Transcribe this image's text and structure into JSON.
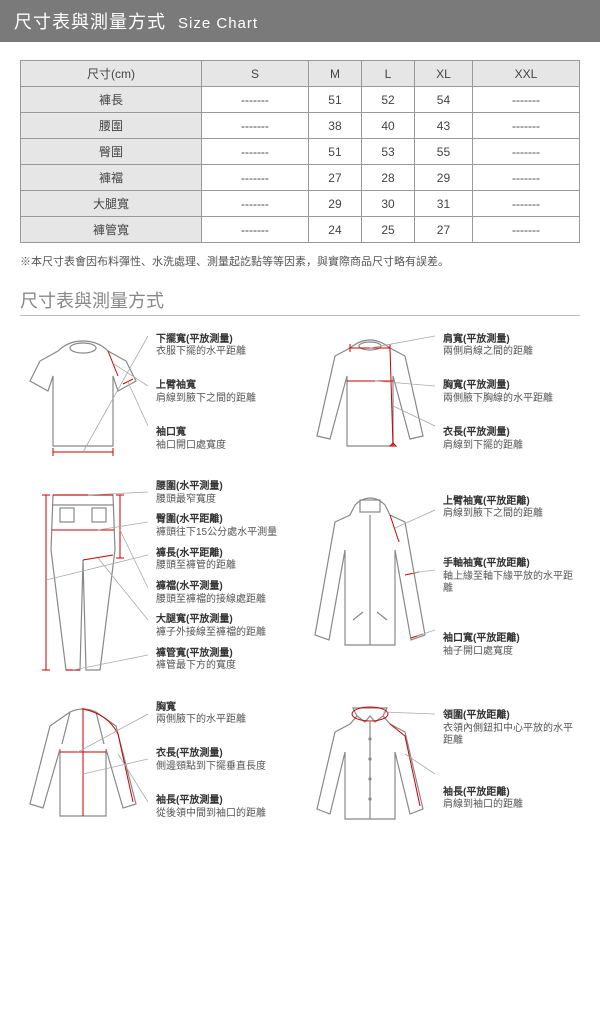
{
  "header": {
    "title_zh": "尺寸表與測量方式",
    "title_en": "Size Chart"
  },
  "table": {
    "columns": [
      "尺寸(cm)",
      "S",
      "M",
      "L",
      "XL",
      "XXL"
    ],
    "rows": [
      [
        "褲長",
        "-------",
        "51",
        "52",
        "54",
        "-------"
      ],
      [
        "腰圍",
        "-------",
        "38",
        "40",
        "43",
        "-------"
      ],
      [
        "臀圍",
        "-------",
        "51",
        "53",
        "55",
        "-------"
      ],
      [
        "褲襠",
        "-------",
        "27",
        "28",
        "29",
        "-------"
      ],
      [
        "大腿寬",
        "-------",
        "29",
        "30",
        "31",
        "-------"
      ],
      [
        "褲管寬",
        "-------",
        "24",
        "25",
        "27",
        "-------"
      ]
    ]
  },
  "note": "※本尺寸表會因布料彈性、水洗處理、測量起訖點等等因素，與實際商品尺寸略有誤差。",
  "subheader": "尺寸表與測量方式",
  "diagrams": {
    "tshirt": [
      {
        "t": "下擺寬(平放測量)",
        "d": "衣服下擺的水平距離"
      },
      {
        "t": "上臂袖寬",
        "d": "肩線到腋下之間的距離"
      },
      {
        "t": "袖口寬",
        "d": "袖口開口處寬度"
      }
    ],
    "longsleeve": [
      {
        "t": "肩寬(平放測量)",
        "d": "兩側肩線之間的距離"
      },
      {
        "t": "胸寬(平放測量)",
        "d": "兩側腋下胸線的水平距離"
      },
      {
        "t": "衣長(平放測量)",
        "d": "肩線到下擺的距離"
      }
    ],
    "pants": [
      {
        "t": "腰圍(水平測量)",
        "d": "腰頭最窄寬度"
      },
      {
        "t": "臀圍(水平距離)",
        "d": "褲頭往下15公分處水平測量"
      },
      {
        "t": "褲長(水平距離)",
        "d": "腰頭至褲管的距離"
      },
      {
        "t": "褲襠(水平測量)",
        "d": "腰頭至褲襠的接線處距離"
      },
      {
        "t": "大腿寬(平放測量)",
        "d": "褲子外接線至褲襠的距離"
      },
      {
        "t": "褲管寬(平放測量)",
        "d": "褲管最下方的寬度"
      }
    ],
    "jacket": [
      {
        "t": "上臂袖寬(平放距離)",
        "d": "肩線到腋下之間的距離"
      },
      {
        "t": "手軸袖寬(平放距離)",
        "d": "軸上緣至軸下緣平放的水平距離"
      },
      {
        "t": "袖口寬(平放距離)",
        "d": "袖子開口處寬度"
      }
    ],
    "raglan": [
      {
        "t": "胸寬",
        "d": "兩側腋下的水平距離"
      },
      {
        "t": "衣長(平放測量)",
        "d": "側邊頸點到下擺垂直長度"
      },
      {
        "t": "袖長(平放測量)",
        "d": "從後領中間到袖口的距離"
      }
    ],
    "shirt": [
      {
        "t": "領圍(平放距離)",
        "d": "衣領內側鈕扣中心平放的水平距離"
      },
      {
        "t": "袖長(平放距離)",
        "d": "肩線到袖口的距離"
      }
    ]
  },
  "colors": {
    "garment": "#888888",
    "measure": "#cc0000",
    "lead": "#aaaaaa",
    "header_bg": "#7a7a7a",
    "th_bg": "#e6e6e6"
  }
}
